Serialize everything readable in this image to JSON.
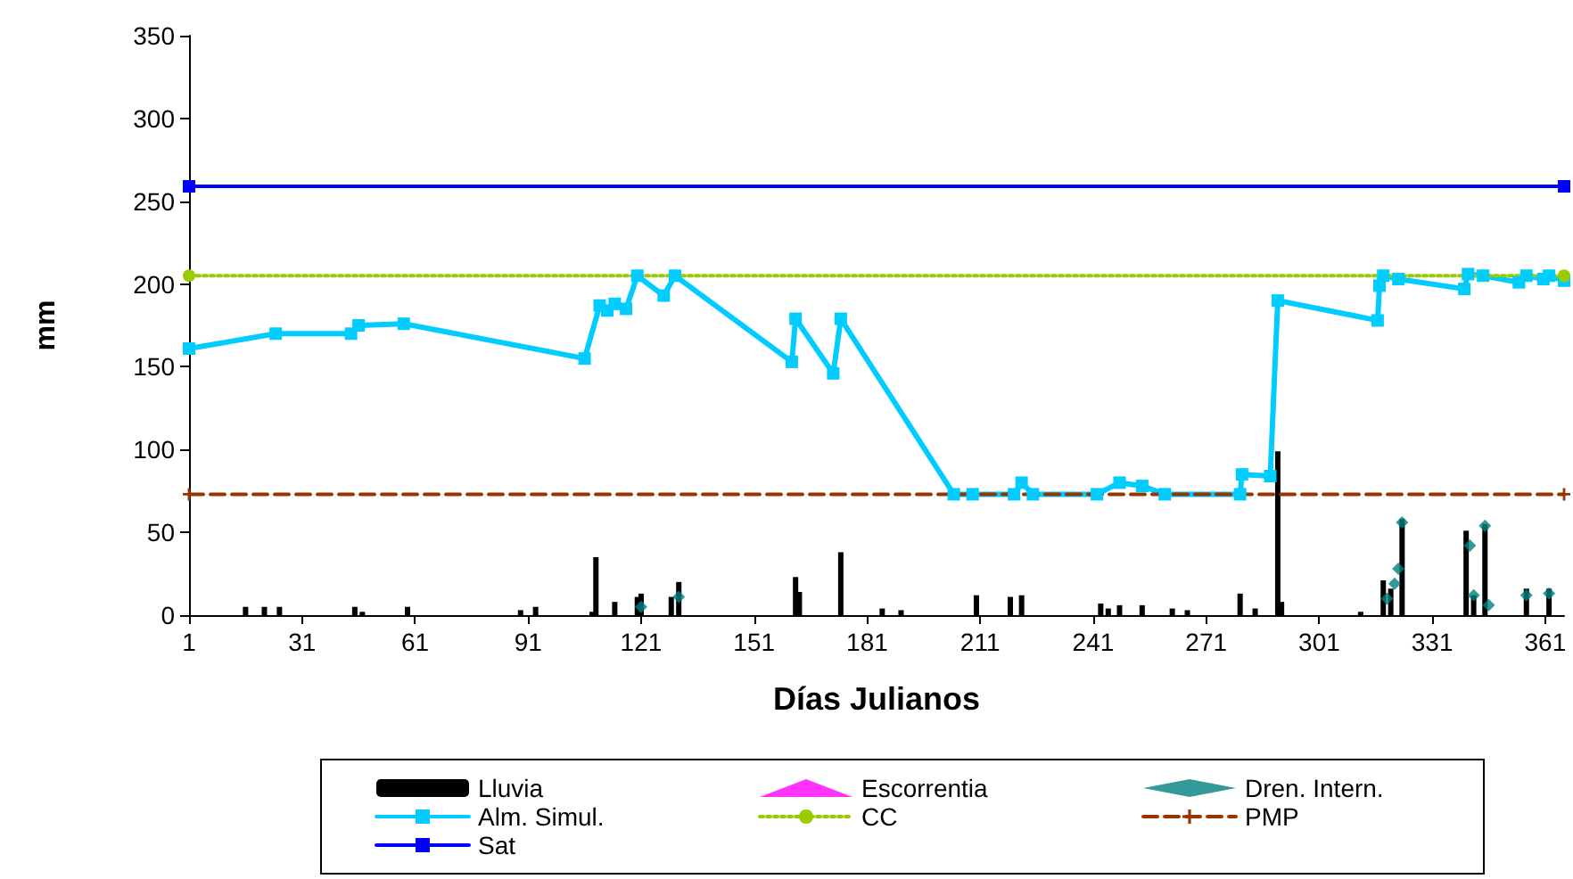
{
  "chart_data": {
    "type": "line",
    "xlabel": "Días Julianos",
    "ylabel": "mm",
    "xlim": [
      1,
      366
    ],
    "xticks": [
      1,
      31,
      61,
      91,
      121,
      151,
      181,
      211,
      241,
      271,
      301,
      331,
      361
    ],
    "ylim": [
      0,
      350
    ],
    "yticks": [
      0,
      50,
      100,
      150,
      200,
      250,
      300,
      350
    ],
    "grid": false,
    "legend": "bottom",
    "series": [
      {
        "name": "Lluvia",
        "type": "bar",
        "color": "#000000",
        "x": [
          16,
          21,
          25,
          45,
          47,
          59,
          89,
          93,
          108,
          109,
          114,
          120,
          121,
          129,
          131,
          162,
          163,
          174,
          185,
          190,
          210,
          219,
          222,
          243,
          245,
          248,
          254,
          262,
          266,
          280,
          284,
          290,
          291,
          312,
          318,
          320,
          323,
          340,
          342,
          345,
          356,
          362
        ],
        "values": [
          5,
          5,
          5,
          5,
          2,
          5,
          3,
          5,
          2,
          35,
          8,
          11,
          13,
          11,
          20,
          23,
          14,
          38,
          4,
          3,
          12,
          11,
          12,
          7,
          4,
          6,
          6,
          4,
          3,
          13,
          4,
          99,
          8,
          2,
          21,
          16,
          58,
          51,
          12,
          55,
          16,
          16
        ]
      },
      {
        "name": "Escorrentia",
        "type": "scatter",
        "color": "#ff00ff",
        "marker": "triangle"
      },
      {
        "name": "Dren. Intern.",
        "type": "scatter",
        "color": "#008080",
        "marker": "diamond",
        "x": [
          121,
          131,
          319,
          321,
          322,
          323,
          341,
          342,
          345,
          346,
          356,
          362
        ],
        "values": [
          5,
          11,
          10,
          19,
          28,
          56,
          42,
          12,
          54,
          6,
          12,
          13
        ]
      },
      {
        "name": "Alm. Simul.",
        "color": "#00ccff",
        "marker": "square",
        "line_style": "solid",
        "x": [
          1,
          24,
          44,
          46,
          58,
          106,
          110,
          112,
          114,
          117,
          120,
          127,
          130,
          161,
          162,
          172,
          174,
          204,
          209,
          220,
          222,
          225,
          242,
          248,
          254,
          260,
          280,
          280.5,
          288,
          290,
          316.5,
          317,
          318,
          322,
          339.5,
          340.5,
          344.5,
          354,
          356,
          360.5,
          362,
          366
        ],
        "values": [
          161,
          170,
          170,
          175,
          176,
          155,
          187,
          184,
          188,
          185,
          205,
          193,
          205,
          153,
          179,
          146,
          179,
          73,
          73,
          73,
          80,
          73,
          73,
          80,
          78,
          73,
          73,
          85,
          84,
          190,
          178,
          199,
          205,
          203,
          197,
          206,
          205,
          201,
          205,
          203,
          205,
          202
        ]
      },
      {
        "name": "CC",
        "color": "#99cc00",
        "marker": "circle",
        "line_style": "dotted",
        "x": [
          1,
          366
        ],
        "values": [
          205,
          205
        ]
      },
      {
        "name": "PMP",
        "color": "#993300",
        "marker": "cross",
        "line_style": "dashed",
        "x": [
          1,
          366
        ],
        "values": [
          73,
          73
        ]
      },
      {
        "name": "Sat",
        "color": "#0000ff",
        "marker": "square",
        "line_style": "solid",
        "x": [
          1,
          366
        ],
        "values": [
          259,
          259
        ]
      }
    ]
  }
}
